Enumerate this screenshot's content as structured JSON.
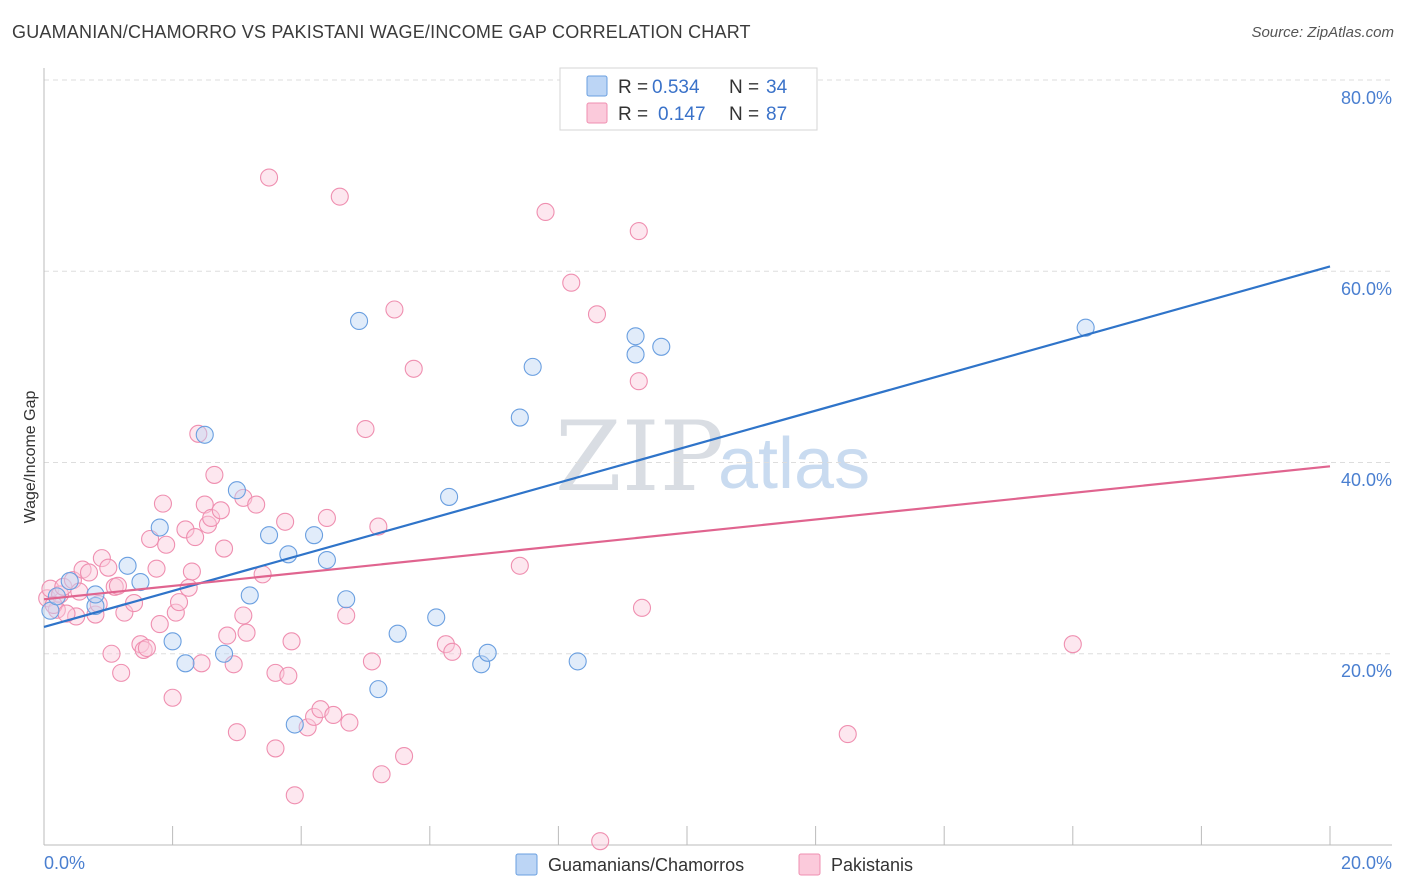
{
  "header": {
    "title": "GUAMANIAN/CHAMORRO VS PAKISTANI WAGE/INCOME GAP CORRELATION CHART",
    "source": "Source: ZipAtlas.com"
  },
  "watermark": {
    "zip": "ZIP",
    "atlas": "atlas"
  },
  "legend": {
    "rows": [
      {
        "r_label": "R =",
        "r_value": "0.534",
        "n_label": "N =",
        "n_value": "34"
      },
      {
        "r_label": "R =",
        "r_value": "0.147",
        "n_label": "N =",
        "n_value": "87"
      }
    ]
  },
  "bottom_legend": [
    "Guamanians/Chamorros",
    "Pakistanis"
  ],
  "chart_data": {
    "type": "scatter",
    "title": "GUAMANIAN/CHAMORRO VS PAKISTANI WAGE/INCOME GAP CORRELATION CHART",
    "xlabel": "",
    "ylabel": "Wage/Income Gap",
    "xlim": [
      0,
      20
    ],
    "ylim": [
      0,
      80
    ],
    "x_tick_labels": [
      "0.0%",
      "20.0%"
    ],
    "y_ticks": [
      20,
      40,
      60,
      80
    ],
    "y_tick_labels": [
      "20.0%",
      "40.0%",
      "60.0%",
      "80.0%"
    ],
    "colors": {
      "series1": "#6a9fe0",
      "series1_line": "#2f74c9",
      "series2": "#ef8fb0",
      "series2_line": "#e0648f"
    },
    "series": [
      {
        "name": "Guamanians/Chamorros",
        "trend": {
          "x": [
            0,
            20
          ],
          "y": [
            22.8,
            60.5
          ]
        },
        "points": [
          [
            0.1,
            24.5
          ],
          [
            0.2,
            26
          ],
          [
            0.4,
            27.6
          ],
          [
            0.8,
            25
          ],
          [
            0.8,
            26.2
          ],
          [
            1.3,
            29.2
          ],
          [
            1.5,
            27.5
          ],
          [
            1.8,
            33.2
          ],
          [
            2.0,
            21.3
          ],
          [
            2.2,
            19
          ],
          [
            2.5,
            42.9
          ],
          [
            2.8,
            20
          ],
          [
            3.0,
            37.1
          ],
          [
            3.2,
            26.1
          ],
          [
            3.5,
            32.4
          ],
          [
            3.8,
            30.4
          ],
          [
            3.9,
            12.6
          ],
          [
            4.2,
            32.4
          ],
          [
            4.4,
            29.8
          ],
          [
            4.7,
            25.7
          ],
          [
            4.9,
            54.8
          ],
          [
            5.2,
            16.3
          ],
          [
            5.5,
            22.1
          ],
          [
            6.1,
            23.8
          ],
          [
            6.3,
            36.4
          ],
          [
            6.8,
            18.9
          ],
          [
            6.9,
            20.1
          ],
          [
            7.4,
            44.7
          ],
          [
            7.6,
            50
          ],
          [
            8.3,
            19.2
          ],
          [
            9.2,
            51.3
          ],
          [
            9.2,
            53.2
          ],
          [
            9.6,
            52.1
          ],
          [
            16.2,
            54.1
          ]
        ]
      },
      {
        "name": "Pakistanis",
        "trend": {
          "x": [
            0,
            20
          ],
          "y": [
            25.7,
            39.6
          ]
        },
        "points": [
          [
            0.05,
            25.8
          ],
          [
            0.1,
            26.8
          ],
          [
            0.2,
            24.6
          ],
          [
            0.25,
            26.2
          ],
          [
            0.3,
            27
          ],
          [
            0.45,
            27.7
          ],
          [
            0.5,
            23.9
          ],
          [
            0.6,
            28.8
          ],
          [
            0.7,
            28.5
          ],
          [
            0.8,
            24.1
          ],
          [
            0.85,
            25.2
          ],
          [
            0.9,
            30
          ],
          [
            1.0,
            29
          ],
          [
            1.05,
            20
          ],
          [
            1.1,
            27
          ],
          [
            1.2,
            18
          ],
          [
            1.25,
            24.3
          ],
          [
            1.4,
            25.3
          ],
          [
            1.5,
            21
          ],
          [
            1.55,
            20.4
          ],
          [
            1.65,
            32
          ],
          [
            1.75,
            28.9
          ],
          [
            1.8,
            23.1
          ],
          [
            1.85,
            35.7
          ],
          [
            1.9,
            31.4
          ],
          [
            2.0,
            15.4
          ],
          [
            2.05,
            24.3
          ],
          [
            2.1,
            25.4
          ],
          [
            2.2,
            33
          ],
          [
            2.3,
            28.6
          ],
          [
            2.35,
            32.2
          ],
          [
            2.4,
            43
          ],
          [
            2.45,
            19
          ],
          [
            2.5,
            35.6
          ],
          [
            2.55,
            33.5
          ],
          [
            2.6,
            34.2
          ],
          [
            2.65,
            38.7
          ],
          [
            2.75,
            35
          ],
          [
            2.8,
            31
          ],
          [
            2.85,
            21.9
          ],
          [
            2.95,
            18.9
          ],
          [
            3.0,
            11.8
          ],
          [
            3.1,
            36.3
          ],
          [
            3.1,
            24
          ],
          [
            3.15,
            22.2
          ],
          [
            3.3,
            35.6
          ],
          [
            3.4,
            28.3
          ],
          [
            3.5,
            69.8
          ],
          [
            3.6,
            18
          ],
          [
            3.6,
            10.1
          ],
          [
            3.75,
            33.8
          ],
          [
            3.8,
            17.7
          ],
          [
            3.85,
            21.3
          ],
          [
            3.9,
            5.2
          ],
          [
            4.1,
            12.3
          ],
          [
            4.2,
            13.4
          ],
          [
            4.3,
            14.2
          ],
          [
            4.4,
            34.2
          ],
          [
            4.5,
            13.6
          ],
          [
            4.6,
            67.8
          ],
          [
            4.7,
            24
          ],
          [
            4.75,
            12.8
          ],
          [
            5.0,
            43.5
          ],
          [
            5.1,
            19.2
          ],
          [
            5.2,
            33.3
          ],
          [
            5.25,
            7.4
          ],
          [
            5.45,
            56
          ],
          [
            5.6,
            9.3
          ],
          [
            5.75,
            49.8
          ],
          [
            6.25,
            21
          ],
          [
            6.35,
            20.2
          ],
          [
            7.4,
            29.2
          ],
          [
            7.8,
            66.2
          ],
          [
            8.2,
            58.8
          ],
          [
            8.6,
            55.5
          ],
          [
            8.65,
            0.4
          ],
          [
            9.25,
            64.2
          ],
          [
            9.25,
            48.5
          ],
          [
            9.3,
            24.8
          ],
          [
            12.5,
            11.6
          ],
          [
            16.0,
            21
          ],
          [
            0.15,
            25.1
          ],
          [
            0.35,
            24.2
          ],
          [
            0.55,
            26.5
          ],
          [
            1.15,
            27.1
          ],
          [
            1.6,
            20.6
          ],
          [
            2.25,
            26.9
          ]
        ]
      }
    ]
  }
}
